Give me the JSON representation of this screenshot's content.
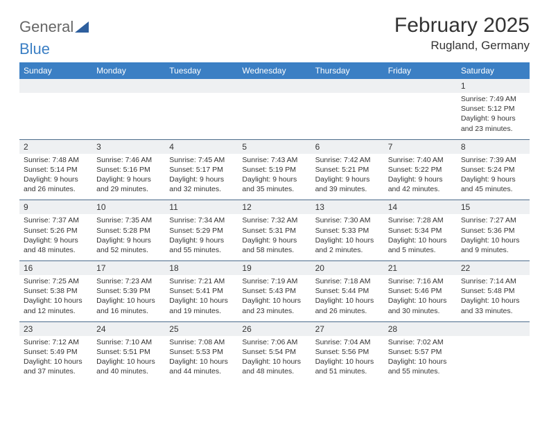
{
  "logo": {
    "text1": "General",
    "text2": "Blue"
  },
  "title": "February 2025",
  "location": "Rugland, Germany",
  "colors": {
    "header_bg": "#3b7fc4",
    "header_text": "#ffffff",
    "daynum_bg": "#eef0f2",
    "divider": "#4a6a8a",
    "text": "#333333",
    "page_bg": "#ffffff"
  },
  "weekdays": [
    "Sunday",
    "Monday",
    "Tuesday",
    "Wednesday",
    "Thursday",
    "Friday",
    "Saturday"
  ],
  "weeks": [
    [
      {
        "n": "",
        "sr": "",
        "ss": "",
        "dl": ""
      },
      {
        "n": "",
        "sr": "",
        "ss": "",
        "dl": ""
      },
      {
        "n": "",
        "sr": "",
        "ss": "",
        "dl": ""
      },
      {
        "n": "",
        "sr": "",
        "ss": "",
        "dl": ""
      },
      {
        "n": "",
        "sr": "",
        "ss": "",
        "dl": ""
      },
      {
        "n": "",
        "sr": "",
        "ss": "",
        "dl": ""
      },
      {
        "n": "1",
        "sr": "Sunrise: 7:49 AM",
        "ss": "Sunset: 5:12 PM",
        "dl": "Daylight: 9 hours and 23 minutes."
      }
    ],
    [
      {
        "n": "2",
        "sr": "Sunrise: 7:48 AM",
        "ss": "Sunset: 5:14 PM",
        "dl": "Daylight: 9 hours and 26 minutes."
      },
      {
        "n": "3",
        "sr": "Sunrise: 7:46 AM",
        "ss": "Sunset: 5:16 PM",
        "dl": "Daylight: 9 hours and 29 minutes."
      },
      {
        "n": "4",
        "sr": "Sunrise: 7:45 AM",
        "ss": "Sunset: 5:17 PM",
        "dl": "Daylight: 9 hours and 32 minutes."
      },
      {
        "n": "5",
        "sr": "Sunrise: 7:43 AM",
        "ss": "Sunset: 5:19 PM",
        "dl": "Daylight: 9 hours and 35 minutes."
      },
      {
        "n": "6",
        "sr": "Sunrise: 7:42 AM",
        "ss": "Sunset: 5:21 PM",
        "dl": "Daylight: 9 hours and 39 minutes."
      },
      {
        "n": "7",
        "sr": "Sunrise: 7:40 AM",
        "ss": "Sunset: 5:22 PM",
        "dl": "Daylight: 9 hours and 42 minutes."
      },
      {
        "n": "8",
        "sr": "Sunrise: 7:39 AM",
        "ss": "Sunset: 5:24 PM",
        "dl": "Daylight: 9 hours and 45 minutes."
      }
    ],
    [
      {
        "n": "9",
        "sr": "Sunrise: 7:37 AM",
        "ss": "Sunset: 5:26 PM",
        "dl": "Daylight: 9 hours and 48 minutes."
      },
      {
        "n": "10",
        "sr": "Sunrise: 7:35 AM",
        "ss": "Sunset: 5:28 PM",
        "dl": "Daylight: 9 hours and 52 minutes."
      },
      {
        "n": "11",
        "sr": "Sunrise: 7:34 AM",
        "ss": "Sunset: 5:29 PM",
        "dl": "Daylight: 9 hours and 55 minutes."
      },
      {
        "n": "12",
        "sr": "Sunrise: 7:32 AM",
        "ss": "Sunset: 5:31 PM",
        "dl": "Daylight: 9 hours and 58 minutes."
      },
      {
        "n": "13",
        "sr": "Sunrise: 7:30 AM",
        "ss": "Sunset: 5:33 PM",
        "dl": "Daylight: 10 hours and 2 minutes."
      },
      {
        "n": "14",
        "sr": "Sunrise: 7:28 AM",
        "ss": "Sunset: 5:34 PM",
        "dl": "Daylight: 10 hours and 5 minutes."
      },
      {
        "n": "15",
        "sr": "Sunrise: 7:27 AM",
        "ss": "Sunset: 5:36 PM",
        "dl": "Daylight: 10 hours and 9 minutes."
      }
    ],
    [
      {
        "n": "16",
        "sr": "Sunrise: 7:25 AM",
        "ss": "Sunset: 5:38 PM",
        "dl": "Daylight: 10 hours and 12 minutes."
      },
      {
        "n": "17",
        "sr": "Sunrise: 7:23 AM",
        "ss": "Sunset: 5:39 PM",
        "dl": "Daylight: 10 hours and 16 minutes."
      },
      {
        "n": "18",
        "sr": "Sunrise: 7:21 AM",
        "ss": "Sunset: 5:41 PM",
        "dl": "Daylight: 10 hours and 19 minutes."
      },
      {
        "n": "19",
        "sr": "Sunrise: 7:19 AM",
        "ss": "Sunset: 5:43 PM",
        "dl": "Daylight: 10 hours and 23 minutes."
      },
      {
        "n": "20",
        "sr": "Sunrise: 7:18 AM",
        "ss": "Sunset: 5:44 PM",
        "dl": "Daylight: 10 hours and 26 minutes."
      },
      {
        "n": "21",
        "sr": "Sunrise: 7:16 AM",
        "ss": "Sunset: 5:46 PM",
        "dl": "Daylight: 10 hours and 30 minutes."
      },
      {
        "n": "22",
        "sr": "Sunrise: 7:14 AM",
        "ss": "Sunset: 5:48 PM",
        "dl": "Daylight: 10 hours and 33 minutes."
      }
    ],
    [
      {
        "n": "23",
        "sr": "Sunrise: 7:12 AM",
        "ss": "Sunset: 5:49 PM",
        "dl": "Daylight: 10 hours and 37 minutes."
      },
      {
        "n": "24",
        "sr": "Sunrise: 7:10 AM",
        "ss": "Sunset: 5:51 PM",
        "dl": "Daylight: 10 hours and 40 minutes."
      },
      {
        "n": "25",
        "sr": "Sunrise: 7:08 AM",
        "ss": "Sunset: 5:53 PM",
        "dl": "Daylight: 10 hours and 44 minutes."
      },
      {
        "n": "26",
        "sr": "Sunrise: 7:06 AM",
        "ss": "Sunset: 5:54 PM",
        "dl": "Daylight: 10 hours and 48 minutes."
      },
      {
        "n": "27",
        "sr": "Sunrise: 7:04 AM",
        "ss": "Sunset: 5:56 PM",
        "dl": "Daylight: 10 hours and 51 minutes."
      },
      {
        "n": "28",
        "sr": "Sunrise: 7:02 AM",
        "ss": "Sunset: 5:57 PM",
        "dl": "Daylight: 10 hours and 55 minutes."
      },
      {
        "n": "",
        "sr": "",
        "ss": "",
        "dl": ""
      }
    ]
  ]
}
